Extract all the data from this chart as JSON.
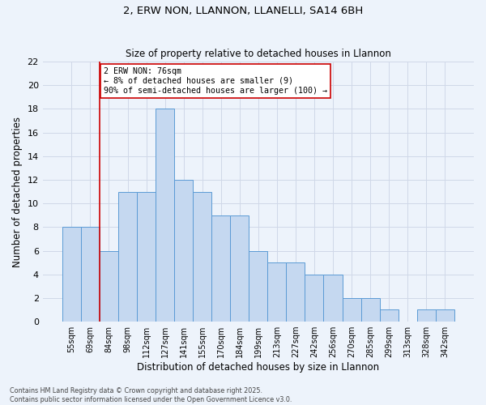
{
  "title_line1": "2, ERW NON, LLANNON, LLANELLI, SA14 6BH",
  "title_line2": "Size of property relative to detached houses in Llannon",
  "xlabel": "Distribution of detached houses by size in Llannon",
  "ylabel": "Number of detached properties",
  "bar_labels": [
    "55sqm",
    "69sqm",
    "84sqm",
    "98sqm",
    "112sqm",
    "127sqm",
    "141sqm",
    "155sqm",
    "170sqm",
    "184sqm",
    "199sqm",
    "213sqm",
    "227sqm",
    "242sqm",
    "256sqm",
    "270sqm",
    "285sqm",
    "299sqm",
    "313sqm",
    "328sqm",
    "342sqm"
  ],
  "bar_values": [
    8,
    8,
    6,
    11,
    11,
    18,
    12,
    11,
    9,
    9,
    6,
    5,
    5,
    4,
    4,
    2,
    2,
    1,
    0,
    1,
    1
  ],
  "bar_color": "#c5d8f0",
  "bar_edgecolor": "#5b9bd5",
  "grid_color": "#d0d8e8",
  "background_color": "#edf3fb",
  "vline_x": 1.5,
  "vline_color": "#cc0000",
  "annotation_text": "2 ERW NON: 76sqm\n← 8% of detached houses are smaller (9)\n90% of semi-detached houses are larger (100) →",
  "annotation_box_color": "white",
  "annotation_box_edgecolor": "#cc0000",
  "ylim": [
    0,
    22
  ],
  "yticks": [
    0,
    2,
    4,
    6,
    8,
    10,
    12,
    14,
    16,
    18,
    20,
    22
  ],
  "footnote": "Contains HM Land Registry data © Crown copyright and database right 2025.\nContains public sector information licensed under the Open Government Licence v3.0."
}
